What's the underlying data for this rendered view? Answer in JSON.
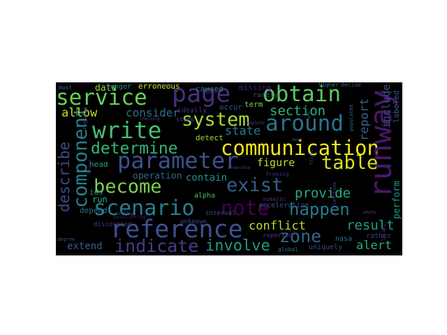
{
  "words": [
    {
      "text": "communication",
      "color": "#f2e51d"
    },
    {
      "text": "reference",
      "color": "#3f5191"
    },
    {
      "text": "parameter",
      "color": "#3b528b"
    },
    {
      "text": "runway",
      "color": "#48186a"
    },
    {
      "text": "scenario",
      "color": "#277f8e"
    },
    {
      "text": "component",
      "color": "#26828e"
    },
    {
      "text": "write",
      "color": "#46c06f"
    },
    {
      "text": "service",
      "color": "#69cd5b"
    },
    {
      "text": "page",
      "color": "#472f7d"
    },
    {
      "text": "obtain",
      "color": "#5ec962"
    },
    {
      "text": "around",
      "color": "#2c728e"
    },
    {
      "text": "system",
      "color": "#a5db36"
    },
    {
      "text": "become",
      "color": "#7ad151"
    },
    {
      "text": "exist",
      "color": "#355f8d"
    },
    {
      "text": "note",
      "color": "#440154"
    },
    {
      "text": "table",
      "color": "#d8e219"
    },
    {
      "text": "determine",
      "color": "#35b779"
    },
    {
      "text": "happen",
      "color": "#2a788e"
    },
    {
      "text": "zone",
      "color": "#31688e"
    },
    {
      "text": "indicate",
      "color": "#433e85"
    },
    {
      "text": "involve",
      "color": "#1f988b"
    },
    {
      "text": "describe",
      "color": "#3e4989"
    },
    {
      "text": "provide",
      "color": "#25ab82"
    },
    {
      "text": "result",
      "color": "#1fa088"
    },
    {
      "text": "section",
      "color": "#2db27d"
    },
    {
      "text": "conflict",
      "color": "#b8de29"
    },
    {
      "text": "alert",
      "color": "#26ad81"
    },
    {
      "text": "report",
      "color": "#35608d"
    },
    {
      "text": "include",
      "color": "#3b528b"
    },
    {
      "text": "state",
      "color": "#29798e"
    },
    {
      "text": "figure",
      "color": "#bddf26"
    },
    {
      "text": "allow",
      "color": "#c2df23"
    },
    {
      "text": "consider",
      "color": "#2e6e8e"
    },
    {
      "text": "contain",
      "color": "#21918c"
    },
    {
      "text": "date",
      "color": "#95d840"
    },
    {
      "text": "extend",
      "color": "#365c8d"
    },
    {
      "text": "operation",
      "color": "#31678e"
    },
    {
      "text": "perform",
      "color": "#1e9b8a"
    },
    {
      "text": "labeled",
      "color": "#38598c"
    },
    {
      "text": "erroneous",
      "color": "#dde318"
    },
    {
      "text": "caused",
      "color": "#2a778e"
    },
    {
      "text": "missing",
      "color": "#482576"
    },
    {
      "text": "longer",
      "color": "#23898e"
    },
    {
      "text": "rarely",
      "color": "#3e4a89"
    },
    {
      "text": "term",
      "color": "#75d054"
    },
    {
      "text": "detect",
      "color": "#9fda3a"
    },
    {
      "text": "occur",
      "color": "#3b528b"
    },
    {
      "text": "head",
      "color": "#20a386"
    },
    {
      "text": "run",
      "color": "#34b679"
    },
    {
      "text": "ids",
      "color": "#25858e"
    },
    {
      "text": "depend",
      "color": "#2c728e"
    },
    {
      "text": "alpha",
      "color": "#44bf70"
    },
    {
      "text": "acceleration",
      "color": "#3e4c8a"
    },
    {
      "text": "uniquely",
      "color": "#3f4889"
    },
    {
      "text": "nasa",
      "color": "#2e6f8e"
    },
    {
      "text": "reported",
      "color": "#443983"
    },
    {
      "text": "global",
      "color": "#2d718e"
    },
    {
      "text": "interval",
      "color": "#3d4d8a"
    },
    {
      "text": "unknown",
      "color": "#414487"
    },
    {
      "text": "discovered",
      "color": "#453781"
    },
    {
      "text": "ideally",
      "color": "#472d7b"
    },
    {
      "text": "stamp",
      "color": "#433d84"
    },
    {
      "text": "numeric",
      "color": "#4c2a7f"
    },
    {
      "text": "freeing",
      "color": "#462a79"
    },
    {
      "text": "positioning",
      "color": "#481c6e"
    },
    {
      "text": "rather",
      "color": "#453882"
    },
    {
      "text": "decide",
      "color": "#3b518b"
    },
    {
      "text": "higher",
      "color": "#2a768e"
    },
    {
      "text": "must",
      "color": "#31688e"
    },
    {
      "text": "degree",
      "color": "#3c4f8a"
    },
    {
      "text": "nothing",
      "color": "#3a548c"
    },
    {
      "text": "checking",
      "color": "#414287"
    },
    {
      "text": "regular",
      "color": "#3f4788"
    },
    {
      "text": "latitude",
      "color": "#433e85"
    },
    {
      "text": "populated",
      "color": "#2f6c8e"
    },
    {
      "text": "closing",
      "color": "#482979"
    },
    {
      "text": "mean",
      "color": "#3a538b"
    },
    {
      "text": "among",
      "color": "#3e4a89"
    },
    {
      "text": "complete",
      "color": "#433e85"
    },
    {
      "text": "whole",
      "color": "#404688"
    },
    {
      "text": "flight",
      "color": "#3b528b"
    },
    {
      "text": "source",
      "color": "#482173"
    },
    {
      "text": "clearance",
      "color": "#414487"
    },
    {
      "text": "vehicle",
      "color": "#453781"
    },
    {
      "text": "track",
      "color": "#3f4889"
    },
    {
      "text": "speed",
      "color": "#472c7a"
    }
  ]
}
